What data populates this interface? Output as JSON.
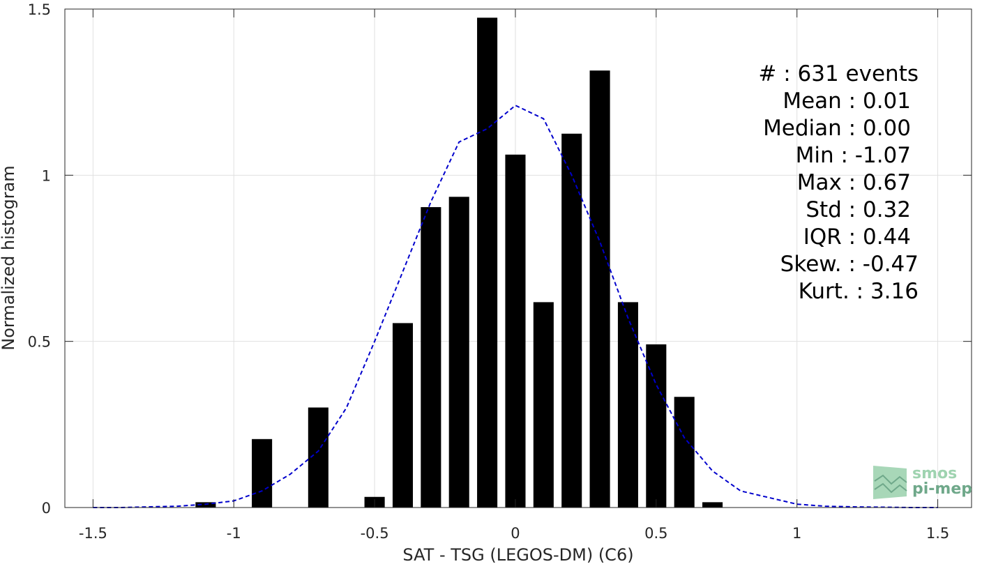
{
  "chart_data": {
    "type": "bar",
    "xlabel": "SAT - TSG (LEGOS-DM) (C6)",
    "ylabel": "Normalized histogram",
    "xlim": [
      -1.6,
      1.62
    ],
    "ylim": [
      0,
      1.5
    ],
    "xticks": [
      -1.5,
      -1,
      -0.5,
      0,
      0.5,
      1,
      1.5
    ],
    "xtick_labels": [
      "-1.5",
      "-1",
      "-0.5",
      "0",
      "0.5",
      "1",
      "1.5"
    ],
    "yticks": [
      0,
      0.5,
      1,
      1.5
    ],
    "ytick_labels": [
      "0",
      "0.5",
      "1",
      "1.5"
    ],
    "grid": true,
    "bar_color": "#000000",
    "bar_width": 0.072,
    "bars": {
      "x": [
        -1.1,
        -0.9,
        -0.7,
        -0.5,
        -0.4,
        -0.3,
        -0.2,
        -0.1,
        0.0,
        0.1,
        0.2,
        0.3,
        0.4,
        0.5,
        0.6,
        0.7
      ],
      "values": [
        0.016,
        0.206,
        0.301,
        0.032,
        0.555,
        0.904,
        0.935,
        1.474,
        1.062,
        0.618,
        1.125,
        1.315,
        0.618,
        0.491,
        0.333,
        0.016
      ]
    },
    "fit_curve": {
      "color": "#0000cc",
      "style": "dashed",
      "x": [
        -1.5,
        -1.4,
        -1.3,
        -1.2,
        -1.1,
        -1.0,
        -0.9,
        -0.8,
        -0.7,
        -0.6,
        -0.5,
        -0.4,
        -0.3,
        -0.2,
        -0.1,
        0.0,
        0.1,
        0.2,
        0.3,
        0.4,
        0.5,
        0.6,
        0.7,
        0.8,
        0.9,
        1.0,
        1.1,
        1.2,
        1.3,
        1.4,
        1.5
      ],
      "y": [
        0.0,
        0.0,
        0.002,
        0.004,
        0.01,
        0.02,
        0.05,
        0.1,
        0.17,
        0.3,
        0.5,
        0.71,
        0.92,
        1.1,
        1.14,
        1.21,
        1.17,
        1.0,
        0.8,
        0.57,
        0.37,
        0.21,
        0.11,
        0.05,
        0.03,
        0.01,
        0.004,
        0.002,
        0.001,
        0.0,
        0.0
      ]
    },
    "stats": [
      {
        "label": "#  : 631 events"
      },
      {
        "label": "Mean : 0.01"
      },
      {
        "label": "Median : 0.00"
      },
      {
        "label": "Min : -1.07"
      },
      {
        "label": "Max : 0.67"
      },
      {
        "label": "Std : 0.32"
      },
      {
        "label": "IQR : 0.44"
      },
      {
        "label": "Skew. : -0.47"
      },
      {
        "label": "Kurt. : 3.16"
      }
    ]
  },
  "logo": {
    "line1": "smos",
    "line2": "pi-mep",
    "color_light": "#9fd3b0",
    "color_dark": "#6fa88a"
  }
}
